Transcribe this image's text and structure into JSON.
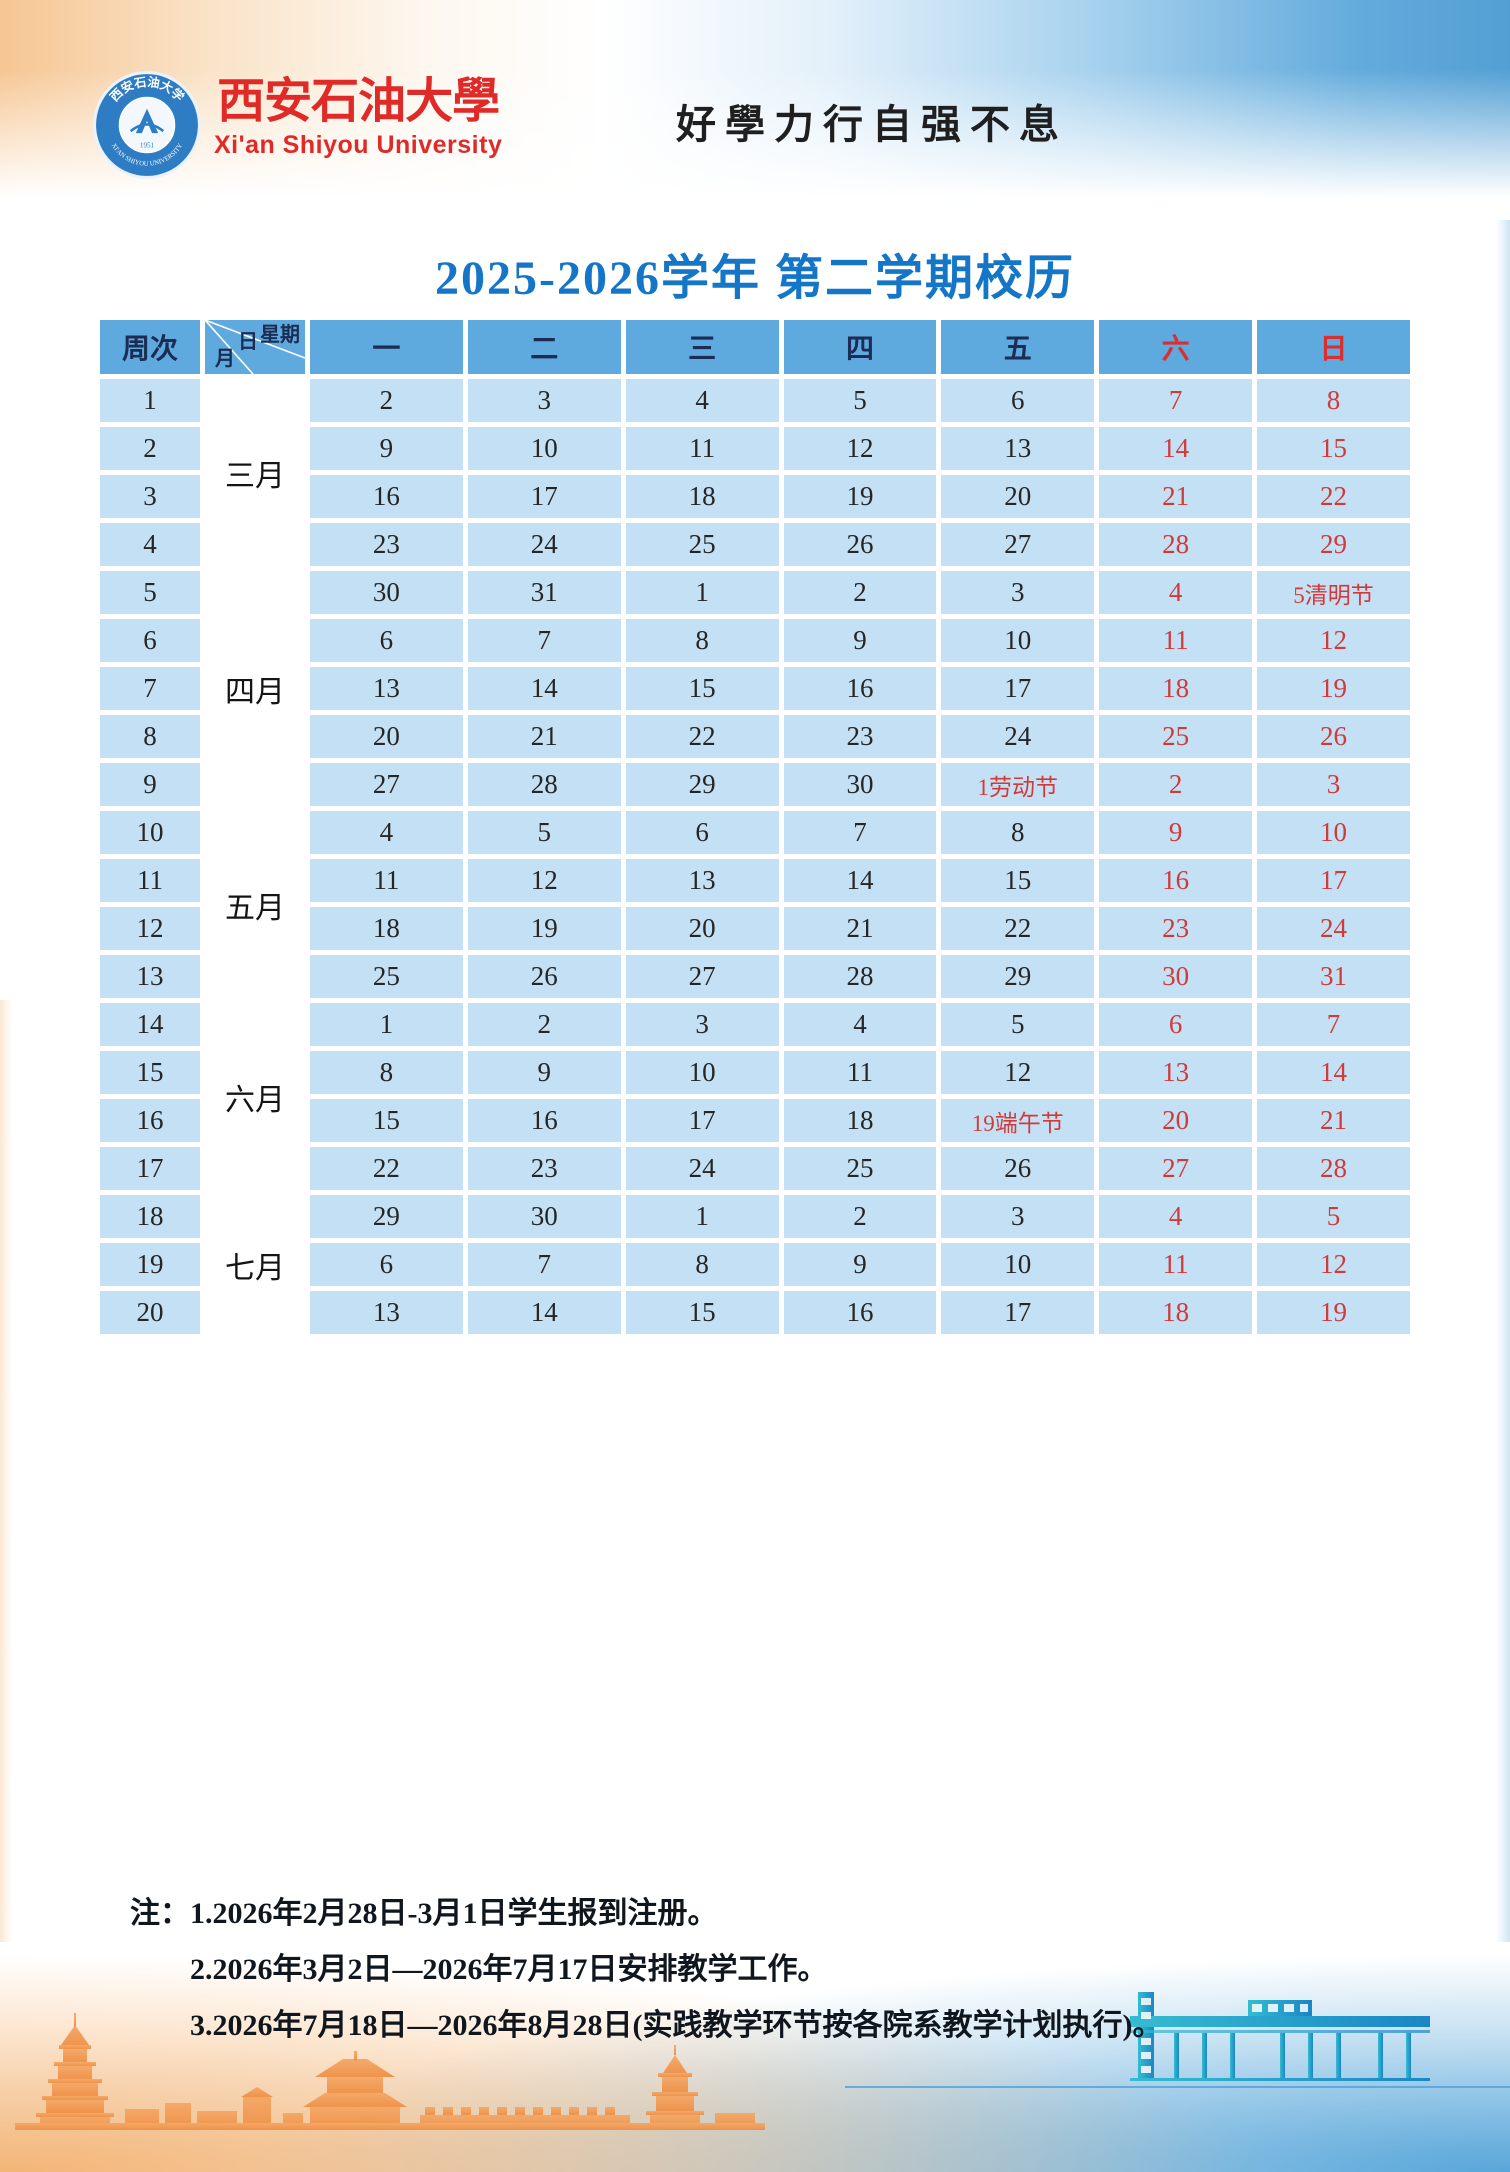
{
  "header": {
    "university_name_cn": "西安石油大學",
    "university_name_en": "Xi'an Shiyou University",
    "motto": "好學力行自强不息",
    "logo_ring_cn": "西安石油大学",
    "logo_ring_en": "XI'AN SHIYOU UNIVERSITY",
    "logo_year": "1951"
  },
  "title": "2025-2026学年 第二学期校历",
  "calendar": {
    "corner": {
      "week_col": "周次",
      "day_label": "日",
      "week_label": "星期",
      "month_label": "月"
    },
    "day_headers": [
      "一",
      "二",
      "三",
      "四",
      "五",
      "六",
      "日"
    ],
    "months": [
      {
        "label": "三月",
        "rows": 4
      },
      {
        "label": "四月",
        "rows": 5
      },
      {
        "label": "五月",
        "rows": 4
      },
      {
        "label": "六月",
        "rows": 4
      },
      {
        "label": "七月",
        "rows": 3
      }
    ],
    "weeks": [
      {
        "week": "1",
        "days": [
          "2",
          "3",
          "4",
          "5",
          "6",
          "7",
          "8"
        ]
      },
      {
        "week": "2",
        "days": [
          "9",
          "10",
          "11",
          "12",
          "13",
          "14",
          "15"
        ]
      },
      {
        "week": "3",
        "days": [
          "16",
          "17",
          "18",
          "19",
          "20",
          "21",
          "22"
        ]
      },
      {
        "week": "4",
        "days": [
          "23",
          "24",
          "25",
          "26",
          "27",
          "28",
          "29"
        ]
      },
      {
        "week": "5",
        "days": [
          "30",
          "31",
          "1",
          "2",
          "3",
          "4",
          "5清明节"
        ]
      },
      {
        "week": "6",
        "days": [
          "6",
          "7",
          "8",
          "9",
          "10",
          "11",
          "12"
        ]
      },
      {
        "week": "7",
        "days": [
          "13",
          "14",
          "15",
          "16",
          "17",
          "18",
          "19"
        ]
      },
      {
        "week": "8",
        "days": [
          "20",
          "21",
          "22",
          "23",
          "24",
          "25",
          "26"
        ]
      },
      {
        "week": "9",
        "days": [
          "27",
          "28",
          "29",
          "30",
          "1劳动节",
          "2",
          "3"
        ]
      },
      {
        "week": "10",
        "days": [
          "4",
          "5",
          "6",
          "7",
          "8",
          "9",
          "10"
        ]
      },
      {
        "week": "11",
        "days": [
          "11",
          "12",
          "13",
          "14",
          "15",
          "16",
          "17"
        ]
      },
      {
        "week": "12",
        "days": [
          "18",
          "19",
          "20",
          "21",
          "22",
          "23",
          "24"
        ]
      },
      {
        "week": "13",
        "days": [
          "25",
          "26",
          "27",
          "28",
          "29",
          "30",
          "31"
        ]
      },
      {
        "week": "14",
        "days": [
          "1",
          "2",
          "3",
          "4",
          "5",
          "6",
          "7"
        ]
      },
      {
        "week": "15",
        "days": [
          "8",
          "9",
          "10",
          "11",
          "12",
          "13",
          "14"
        ]
      },
      {
        "week": "16",
        "days": [
          "15",
          "16",
          "17",
          "18",
          "19端午节",
          "20",
          "21"
        ]
      },
      {
        "week": "17",
        "days": [
          "22",
          "23",
          "24",
          "25",
          "26",
          "27",
          "28"
        ]
      },
      {
        "week": "18",
        "days": [
          "29",
          "30",
          "1",
          "2",
          "3",
          "4",
          "5"
        ]
      },
      {
        "week": "19",
        "days": [
          "6",
          "7",
          "8",
          "9",
          "10",
          "11",
          "12"
        ]
      },
      {
        "week": "20",
        "days": [
          "13",
          "14",
          "15",
          "16",
          "17",
          "18",
          "19"
        ]
      }
    ]
  },
  "notes": {
    "label": "注：",
    "items": [
      "1.2026年2月28日-3月1日学生报到注册。",
      "2.2026年3月2日—2026年7月17日安排教学工作。",
      "3.2026年7月18日—2026年8月28日(实践教学环节按各院系教学计划执行)。"
    ]
  },
  "colors": {
    "title_blue": "#1576c8",
    "header_blue": "#5ea9dd",
    "cell_blue": "#c3e0f4",
    "weekend_red": "#d23a3a",
    "brand_red": "#e02a28"
  }
}
